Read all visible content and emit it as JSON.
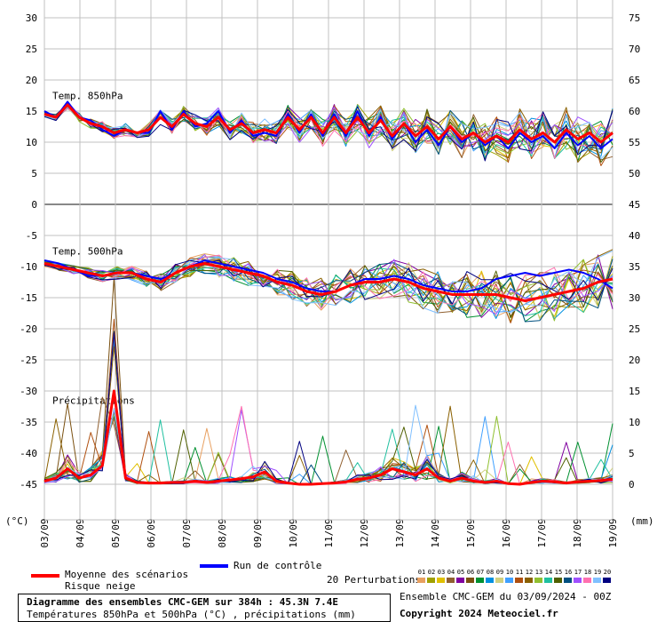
{
  "chart_data": {
    "type": "line",
    "title": "Diagramme des ensembles CMC-GEM sur 384h : 45.3N 7.4E",
    "subtitle": "Températures 850hPa et 500hPa (°C) , précipitations (mm)",
    "left_axis_unit": "(°C)",
    "right_axis_unit": "(mm)",
    "left_ticks": [
      30,
      25,
      20,
      15,
      10,
      5,
      0,
      -5,
      -10,
      -15,
      -20,
      -25,
      -30,
      -35,
      -40,
      -45
    ],
    "right_ticks": [
      75,
      70,
      65,
      60,
      55,
      50,
      45,
      40,
      35,
      30,
      25,
      20,
      15,
      10,
      5,
      0
    ],
    "x_ticks": [
      "03/09",
      "04/09",
      "05/09",
      "06/09",
      "07/09",
      "08/09",
      "09/09",
      "10/09",
      "11/09",
      "12/09",
      "13/09",
      "14/09",
      "15/09",
      "16/09",
      "17/09",
      "18/09",
      "19/09"
    ],
    "ylim": [
      -45,
      30
    ],
    "section_labels": [
      "Temp. 850hPa",
      "Temp. 500hPa",
      "Précipitations"
    ],
    "grid": true,
    "series": [
      {
        "name": "Moyenne des scénarios",
        "color": "#ff0000",
        "t850": [
          14.5,
          14,
          16,
          14,
          13,
          12.5,
          11.5,
          12,
          11.5,
          12,
          14,
          12.5,
          14.5,
          13,
          12.5,
          14,
          12,
          13,
          11.5,
          12,
          11.5,
          14,
          12,
          14,
          11.5,
          14,
          11.5,
          14,
          11.5,
          13.5,
          11,
          13,
          11,
          12.5,
          10.5,
          12.5,
          10.5,
          11.5,
          10,
          11,
          10,
          12,
          10.5,
          11.5,
          10,
          12,
          10.5,
          11.5,
          10,
          11.5
        ],
        "t500": [
          -9.5,
          -10,
          -10.5,
          -11,
          -11.5,
          -11,
          -11,
          -12,
          -12.5,
          -11,
          -10,
          -9.5,
          -10,
          -10.5,
          -11,
          -11.5,
          -12.5,
          -13,
          -14,
          -14.5,
          -14,
          -13,
          -12.5,
          -12.5,
          -12,
          -12.5,
          -13.5,
          -14,
          -14.5,
          -14.5,
          -14.5,
          -14.5,
          -15,
          -15.5,
          -15,
          -14.5,
          -14,
          -13.5,
          -12.5,
          -12
        ],
        "precip": [
          0.5,
          1,
          2.5,
          1,
          1.5,
          3,
          15,
          1,
          0.3,
          0.2,
          0.2,
          0.3,
          0.3,
          0.5,
          0.3,
          0.5,
          0.7,
          0.9,
          1.2,
          2,
          0.5,
          0.2,
          0,
          0,
          0.1,
          0.2,
          0.4,
          0.8,
          1,
          1.5,
          2.5,
          2,
          1.5,
          2.5,
          1,
          0.5,
          1,
          0.5,
          0.3,
          0.5,
          0.1,
          0,
          0.3,
          0.5,
          0.4,
          0.2,
          0.4,
          0.5,
          0.6,
          0.8
        ]
      },
      {
        "name": "Run de contrôle",
        "color": "#0000ff",
        "t850": [
          15,
          14,
          16.5,
          14,
          13.5,
          12,
          11,
          12,
          11.5,
          11.5,
          15,
          12,
          15,
          12.5,
          13,
          15,
          11.5,
          13.5,
          11,
          11.5,
          11,
          14.5,
          11.5,
          14.5,
          11,
          14.5,
          11,
          15,
          11,
          14,
          10.5,
          13,
          10,
          12,
          9.5,
          12.5,
          10,
          11.5,
          9.5,
          11,
          9,
          11.5,
          10,
          11,
          9,
          11.5,
          9.5,
          11,
          9,
          10.5
        ],
        "t500": [
          -9,
          -9.5,
          -10.5,
          -11.5,
          -11.5,
          -11,
          -11,
          -11.5,
          -12,
          -11,
          -10,
          -9,
          -9.5,
          -10,
          -10.5,
          -11,
          -12,
          -12.5,
          -13.5,
          -14,
          -14,
          -13,
          -12,
          -12,
          -11.5,
          -12,
          -13,
          -13.5,
          -14,
          -14,
          -13.5,
          -12,
          -11.5,
          -11,
          -11.5,
          -11,
          -10.5,
          -11,
          -12,
          -13.5
        ]
      },
      {
        "name": "Risque neige",
        "color": "#000000"
      },
      {
        "name": "20 Perturbations",
        "color": "#888888"
      }
    ],
    "legend": {
      "mean_label": "Moyenne des scénarios",
      "snow_label": "Risque neige",
      "control_label": "Run de contrôle",
      "pert_label": "20 Perturbations",
      "pert_numbers": [
        "01",
        "02",
        "03",
        "04",
        "05",
        "06",
        "07",
        "08",
        "09",
        "10",
        "11",
        "12",
        "13",
        "14",
        "15",
        "16",
        "17",
        "18",
        "19",
        "20"
      ],
      "pert_colors": [
        "#e8a060",
        "#a0a000",
        "#e0c000",
        "#906030",
        "#8000a0",
        "#7a5010",
        "#009030",
        "#0090e0",
        "#d0d080",
        "#40a0ff",
        "#b05010",
        "#8a6000",
        "#90c030",
        "#20c0a0",
        "#506000",
        "#005080",
        "#a050ff",
        "#ff70b0",
        "#80c0ff",
        "#000080"
      ]
    },
    "footer_left_title": "Diagramme des ensembles CMC-GEM sur 384h : 45.3N 7.4E",
    "footer_left_sub": "Températures 850hPa et 500hPa (°C) , précipitations (mm)",
    "footer_right_1": "Ensemble CMC-GEM du 03/09/2024 - 00Z",
    "footer_right_2": "Copyright 2024 Meteociel.fr"
  }
}
